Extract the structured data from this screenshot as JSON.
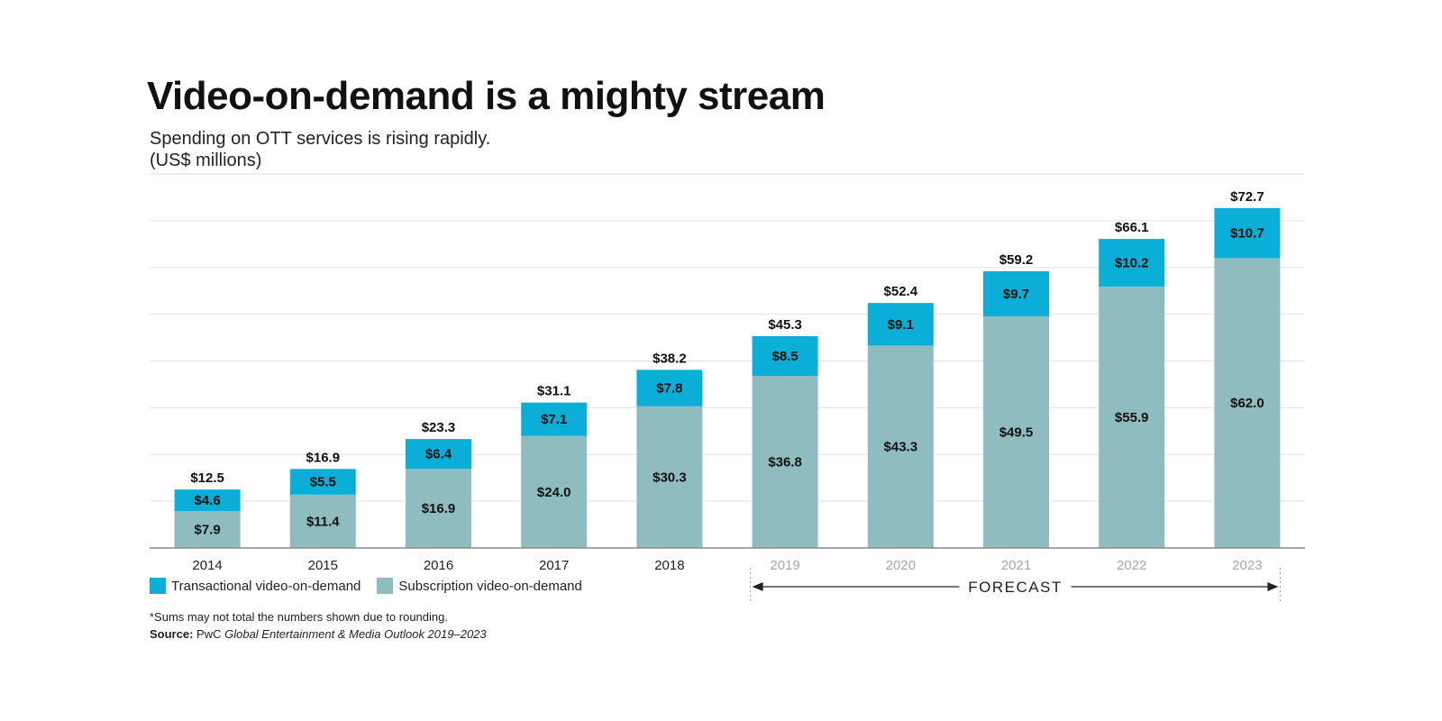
{
  "header": {
    "title": "Video-on-demand is a mighty stream",
    "subtitle": "Spending on OTT services is rising rapidly.",
    "units": "(US$ millions)"
  },
  "legend": {
    "items": [
      {
        "label": "Transactional video-on-demand",
        "color": "#0aaed6"
      },
      {
        "label": "Subscription video-on-demand",
        "color": "#8fbcbe"
      }
    ]
  },
  "forecast": {
    "label": "FORECAST",
    "start": "2019",
    "end": "2023"
  },
  "footer": {
    "note": "*Sums may not total the numbers shown due to rounding.",
    "source_label": "Source:",
    "source_publisher": "PwC",
    "source_title": "Global Entertainment & Media Outlook 2019–2023"
  },
  "chart_data": {
    "type": "bar",
    "stacked": true,
    "categories": [
      "2014",
      "2015",
      "2016",
      "2017",
      "2018",
      "2019",
      "2020",
      "2021",
      "2022",
      "2023"
    ],
    "forecast_categories": [
      "2019",
      "2020",
      "2021",
      "2022",
      "2023"
    ],
    "series": [
      {
        "name": "Subscription video-on-demand",
        "color": "#8fbcbe",
        "values": [
          7.9,
          11.4,
          16.9,
          24.0,
          30.3,
          36.8,
          43.3,
          49.5,
          55.9,
          62.0
        ],
        "labels": [
          "$7.9",
          "$11.4",
          "$16.9",
          "$24.0",
          "$30.3",
          "$36.8",
          "$43.3",
          "$49.5",
          "$55.9",
          "$62.0"
        ]
      },
      {
        "name": "Transactional video-on-demand",
        "color": "#0aaed6",
        "values": [
          4.6,
          5.5,
          6.4,
          7.1,
          7.8,
          8.5,
          9.1,
          9.7,
          10.2,
          10.7
        ],
        "labels": [
          "$4.6",
          "$5.5",
          "$6.4",
          "$7.1",
          "$7.8",
          "$8.5",
          "$9.1",
          "$9.7",
          "$10.2",
          "$10.7"
        ]
      }
    ],
    "totals": [
      12.5,
      16.9,
      23.3,
      31.1,
      38.2,
      45.3,
      52.4,
      59.2,
      66.1,
      72.7
    ],
    "total_labels": [
      "$12.5",
      "$16.9",
      "$23.3",
      "$31.1",
      "$38.2",
      "$45.3",
      "$52.4",
      "$59.2",
      "$66.1",
      "$72.7"
    ],
    "ylim": [
      0,
      80
    ],
    "grid": true,
    "legend_position": "bottom-left",
    "xlabel": "",
    "ylabel": ""
  }
}
